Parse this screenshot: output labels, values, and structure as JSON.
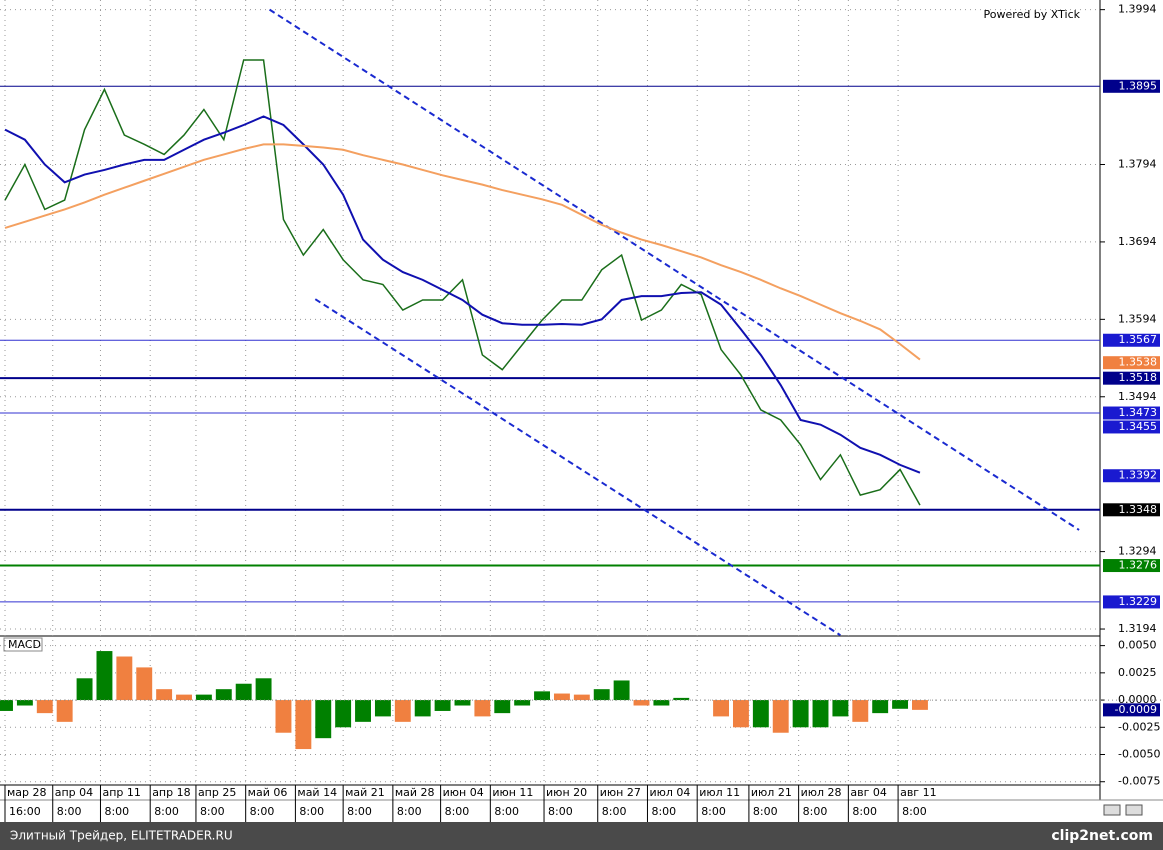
{
  "chart_data": [
    {
      "type": "line",
      "watermark": "Powered by XTick",
      "x": [
        0,
        1,
        2,
        3,
        4,
        5,
        6,
        7,
        8,
        9,
        10,
        11,
        12,
        13,
        14,
        15,
        16,
        17,
        18,
        19,
        20,
        21,
        22,
        23,
        24,
        25,
        26,
        27,
        28,
        29,
        30,
        31,
        32,
        33,
        34,
        35,
        36,
        37,
        38,
        39,
        40,
        41,
        42,
        43,
        44,
        45,
        46
      ],
      "series": [
        {
          "color": "#1a6e1a",
          "values": [
            1.3748,
            1.3794,
            1.3736,
            1.3748,
            1.3839,
            1.3891,
            1.3832,
            1.382,
            1.3807,
            1.3832,
            1.3865,
            1.3826,
            1.3929,
            1.3929,
            1.3723,
            1.3677,
            1.371,
            1.3671,
            1.3645,
            1.3639,
            1.3606,
            1.3619,
            1.3619,
            1.3645,
            1.3548,
            1.3529,
            1.3561,
            1.3593,
            1.3619,
            1.3619,
            1.3658,
            1.3677,
            1.3593,
            1.3606,
            1.3639,
            1.3626,
            1.3555,
            1.3522,
            1.3477,
            1.3464,
            1.3432,
            1.3387,
            1.3419,
            1.3367,
            1.3374,
            1.34,
            1.3354
          ]
        },
        {
          "color": "#1010b0",
          "values": [
            1.3839,
            1.3826,
            1.3794,
            1.3771,
            1.3781,
            1.3787,
            1.3794,
            1.38,
            1.38,
            1.3813,
            1.3826,
            1.3835,
            1.3845,
            1.3856,
            1.3845,
            1.382,
            1.3794,
            1.3755,
            1.3697,
            1.3671,
            1.3655,
            1.3645,
            1.3632,
            1.3619,
            1.36,
            1.3589,
            1.3587,
            1.3587,
            1.3588,
            1.3587,
            1.3594,
            1.3619,
            1.3624,
            1.3624,
            1.3628,
            1.3629,
            1.3613,
            1.3581,
            1.3548,
            1.3509,
            1.3464,
            1.3458,
            1.3445,
            1.3428,
            1.3419,
            1.3406,
            1.3396
          ]
        },
        {
          "color": "#f4a060",
          "values": [
            1.3712,
            1.372,
            1.3728,
            1.3736,
            1.3745,
            1.3755,
            1.3764,
            1.3773,
            1.3782,
            1.3791,
            1.38,
            1.3807,
            1.3814,
            1.382,
            1.382,
            1.3818,
            1.3816,
            1.3813,
            1.3806,
            1.38,
            1.3794,
            1.3787,
            1.378,
            1.3774,
            1.3768,
            1.3761,
            1.3755,
            1.3749,
            1.3742,
            1.3729,
            1.3716,
            1.3706,
            1.3697,
            1.369,
            1.3682,
            1.3674,
            1.3664,
            1.3655,
            1.3645,
            1.3634,
            1.3624,
            1.3613,
            1.3602,
            1.3592,
            1.3581,
            1.3562,
            1.3542
          ]
        }
      ],
      "levels": [
        {
          "value": 1.3895,
          "color": "#00008b",
          "width": 1
        },
        {
          "value": 1.3567,
          "color": "#3030d0",
          "width": 1
        },
        {
          "value": 1.3518,
          "color": "#00008b",
          "width": 2
        },
        {
          "value": 1.3473,
          "color": "#3030d0",
          "width": 1
        },
        {
          "value": 1.3348,
          "color": "#00008b",
          "width": 2
        },
        {
          "value": 1.3276,
          "color": "#008000",
          "width": 2
        },
        {
          "value": 1.3229,
          "color": "#3030d0",
          "width": 1
        }
      ],
      "price_labels": [
        {
          "value": 1.3895,
          "color": "#00008b"
        },
        {
          "value": 1.3567,
          "color": "#1a1ad0"
        },
        {
          "value": 1.3538,
          "color": "#f08040"
        },
        {
          "value": 1.3518,
          "color": "#00008b"
        },
        {
          "value": 1.3473,
          "color": "#1a1ad0"
        },
        {
          "value": 1.3455,
          "color": "#1a1ad0"
        },
        {
          "value": 1.3392,
          "color": "#1a1ad0"
        },
        {
          "value": 1.3348,
          "color": "#000000"
        },
        {
          "value": 1.3276,
          "color": "#008000"
        },
        {
          "value": 1.3229,
          "color": "#1a1ad0"
        }
      ],
      "trend_lines": [
        {
          "color": "#1a2ad0",
          "x": [
            13.3,
            54.0
          ],
          "y": [
            1.3994,
            1.3322
          ]
        },
        {
          "color": "#1a2ad0",
          "x": [
            15.6,
            42.0
          ],
          "y": [
            1.362,
            1.3186
          ]
        }
      ],
      "xlim": [
        0,
        54.8
      ],
      "ylim": [
        1.3185,
        1.4
      ],
      "yticks": [
        1.3994,
        1.3794,
        1.3694,
        1.3594,
        1.3494,
        1.3294,
        1.3194
      ],
      "xticks": [
        {
          "value": 0,
          "label": "мар 28"
        },
        {
          "value": 2.4,
          "label": "апр 04"
        },
        {
          "value": 4.8,
          "label": "апр 11"
        },
        {
          "value": 7.3,
          "label": "апр 18"
        },
        {
          "value": 9.6,
          "label": "апр 25"
        },
        {
          "value": 12.1,
          "label": "май 06"
        },
        {
          "value": 14.6,
          "label": "май 14"
        },
        {
          "value": 17.0,
          "label": "май 21"
        },
        {
          "value": 19.5,
          "label": "май 28"
        },
        {
          "value": 21.9,
          "label": "июн 04"
        },
        {
          "value": 24.4,
          "label": "июн 11"
        },
        {
          "value": 27.1,
          "label": "июн 20"
        },
        {
          "value": 29.8,
          "label": "июн 27"
        },
        {
          "value": 32.3,
          "label": "июл 04"
        },
        {
          "value": 34.8,
          "label": "июл 11"
        },
        {
          "value": 37.4,
          "label": "июл 21"
        },
        {
          "value": 39.9,
          "label": "июл 28"
        },
        {
          "value": 42.4,
          "label": "авг 04"
        },
        {
          "value": 44.9,
          "label": "авг 11"
        }
      ],
      "time_labels": [
        "16:00",
        "8:00",
        "8:00",
        "8:00",
        "8:00",
        "8:00",
        "8:00",
        "8:00",
        "8:00",
        "8:00",
        "8:00",
        "8:00",
        "8:00",
        "8:00",
        "8:00",
        "8:00",
        "8:00",
        "8:00",
        "8:00"
      ],
      "grid": true
    },
    {
      "type": "bar",
      "title": "MACD",
      "up_color": "#008000",
      "down_color": "#f08040",
      "values": [
        -0.001,
        -0.0005,
        -0.0012,
        -0.002,
        0.002,
        0.0045,
        0.004,
        0.003,
        0.001,
        0.0005,
        0.0005,
        0.001,
        0.0015,
        0.002,
        -0.003,
        -0.0045,
        -0.0035,
        -0.0025,
        -0.002,
        -0.0015,
        -0.002,
        -0.0015,
        -0.001,
        -0.0005,
        -0.0015,
        -0.0012,
        -0.0005,
        0.0008,
        0.0006,
        0.0005,
        0.001,
        0.0018,
        -0.0005,
        -0.0005,
        0.0002,
        0.0,
        -0.0015,
        -0.0025,
        -0.0025,
        -0.003,
        -0.0025,
        -0.0025,
        -0.0015,
        -0.002,
        -0.0012,
        -0.0008,
        -0.0009
      ],
      "current": {
        "value": -0.0009,
        "color": "#00008b"
      },
      "ylim": [
        -0.0078,
        0.0057
      ],
      "yticks": [
        {
          "value": 0.005,
          "label": "0.0050"
        },
        0.0025,
        {
          "value": 0,
          "label": "0.0000"
        },
        -0.0025,
        {
          "value": -0.005,
          "label": "-0.0050"
        },
        -0.0075
      ],
      "grid": true
    }
  ],
  "footer": {
    "left": "Элитный Трейдер, ELITETRADER.RU",
    "right": "clip2net.com"
  }
}
